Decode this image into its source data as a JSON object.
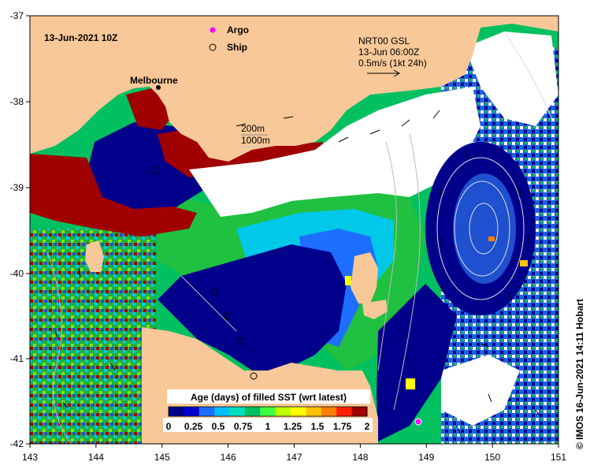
{
  "map": {
    "date_label": "13-Jun-2021 10Z",
    "city_label": "Melbourne",
    "legend": {
      "argo_label": "Argo",
      "ship_label": "Ship"
    },
    "current_key": {
      "line1": "NRT00 GSL",
      "line2": "13-Jun 06:00Z",
      "line3": "0.5m/s (1kt 24h)"
    },
    "contour_key": {
      "line1": "200m",
      "line2": "1000m"
    },
    "credit": "© IMOS 16-Jun-2021 14:11 Hobart",
    "x_ticks": [
      "143",
      "144",
      "145",
      "146",
      "147",
      "148",
      "149",
      "150",
      "151"
    ],
    "y_ticks": [
      "-37",
      "-38",
      "-39",
      "-40",
      "-41",
      "-42"
    ],
    "colorbar": {
      "title": "Age (days) of filled SST (wrt latest)",
      "labels": [
        "0",
        "0.25",
        "0.5",
        "0.75",
        "1",
        "1.25",
        "1.5",
        "1.75",
        "2"
      ],
      "colors": [
        "#00008b",
        "#0000cd",
        "#1e6fff",
        "#00bfff",
        "#00e0c0",
        "#00c060",
        "#40ff40",
        "#c0ff00",
        "#ffff00",
        "#ffc000",
        "#ff8000",
        "#ff2000",
        "#a00000"
      ]
    },
    "colors": {
      "land": "#f8c898",
      "cloud": "#ffffff",
      "deep_blue": "#00008b",
      "blue": "#1e50d0",
      "cyan": "#00c8e8",
      "green": "#20c040",
      "light_green": "#80e020",
      "red": "#a00000"
    }
  }
}
